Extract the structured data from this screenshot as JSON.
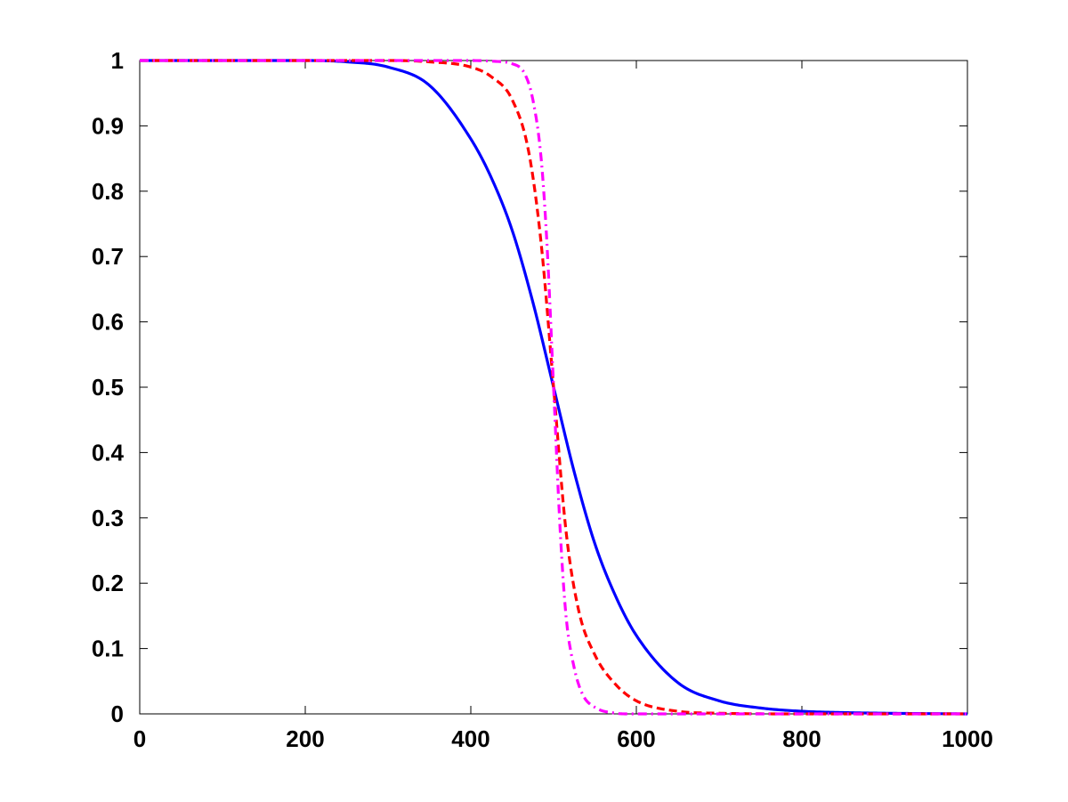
{
  "chart_data": {
    "type": "line",
    "title": "",
    "xlabel": "",
    "ylabel": "",
    "xlim": [
      0,
      1000
    ],
    "ylim": [
      0,
      1
    ],
    "grid": false,
    "x_ticks": [
      "0",
      "200",
      "400",
      "600",
      "800",
      "1000"
    ],
    "y_ticks": [
      "0",
      "0.1",
      "0.2",
      "0.3",
      "0.4",
      "0.5",
      "0.6",
      "0.7",
      "0.8",
      "0.9",
      "1"
    ],
    "series": [
      {
        "color": "#0000ff",
        "style": "solid",
        "x": [
          0,
          100,
          200,
          250,
          300,
          350,
          400,
          425,
          450,
          475,
          500,
          525,
          550,
          575,
          600,
          650,
          700,
          750,
          800,
          850,
          900,
          1000
        ],
        "y": [
          1.0,
          1.0,
          1.0,
          0.998,
          0.99,
          0.962,
          0.88,
          0.82,
          0.74,
          0.63,
          0.5,
          0.37,
          0.26,
          0.18,
          0.12,
          0.048,
          0.02,
          0.009,
          0.004,
          0.002,
          0.001,
          0.0
        ]
      },
      {
        "color": "#ff0000",
        "style": "dashed",
        "x": [
          0,
          100,
          200,
          300,
          350,
          400,
          425,
          450,
          470,
          485,
          500,
          515,
          530,
          550,
          575,
          600,
          650,
          700,
          800,
          1000
        ],
        "y": [
          1.0,
          1.0,
          1.0,
          1.0,
          0.998,
          0.99,
          0.975,
          0.94,
          0.86,
          0.72,
          0.5,
          0.28,
          0.16,
          0.09,
          0.045,
          0.02,
          0.004,
          0.001,
          0.0,
          0.0
        ]
      },
      {
        "color": "#ff00ff",
        "style": "dashdot",
        "x": [
          0,
          100,
          200,
          300,
          400,
          425,
          450,
          465,
          475,
          485,
          492,
          500,
          508,
          515,
          525,
          535,
          550,
          575,
          590,
          600,
          800,
          1000
        ],
        "y": [
          1.0,
          1.0,
          1.0,
          1.0,
          1.0,
          0.999,
          0.995,
          0.98,
          0.94,
          0.85,
          0.72,
          0.5,
          0.28,
          0.15,
          0.07,
          0.03,
          0.01,
          0.001,
          0.0,
          0.0,
          0.0,
          0.0
        ]
      }
    ]
  }
}
